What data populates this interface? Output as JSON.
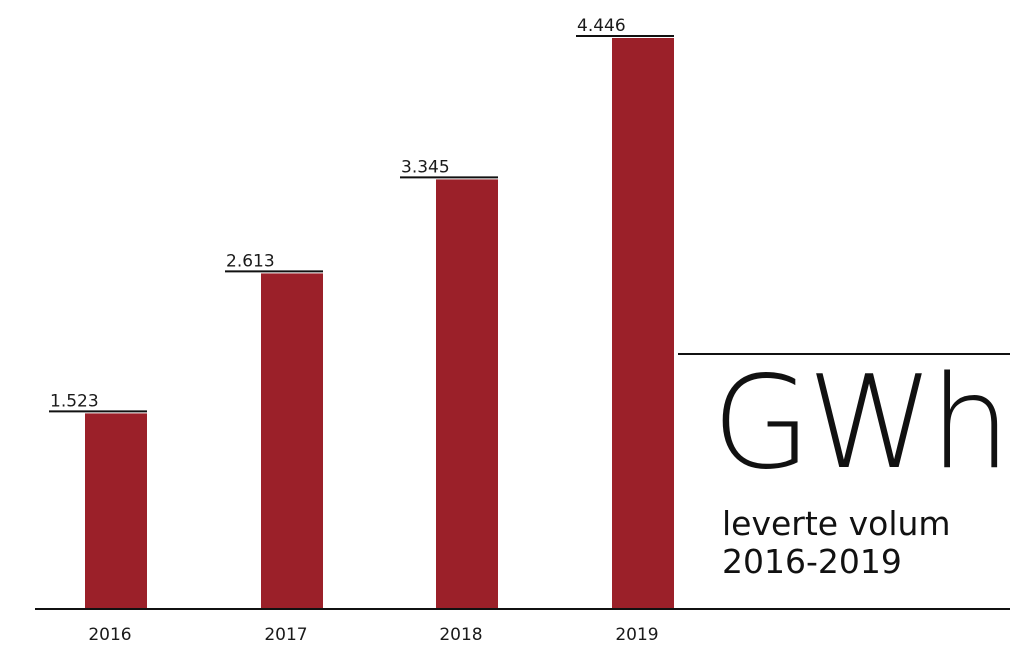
{
  "chart_data": {
    "type": "bar",
    "categories": [
      "2016",
      "2017",
      "2018",
      "2019"
    ],
    "values": [
      1523,
      2613,
      3345,
      4446
    ],
    "value_labels": [
      "1.523",
      "2.613",
      "3.345",
      "4.446"
    ],
    "unit": "GWh",
    "subtitle_lines": [
      "leverte volum",
      "2016-2019"
    ],
    "ylim": [
      0,
      4446
    ],
    "grid": false,
    "bar_color": "#9b2029",
    "axis_color": "#111111"
  }
}
